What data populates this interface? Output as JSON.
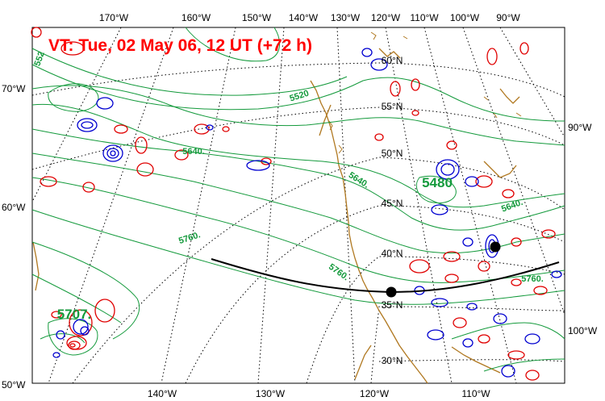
{
  "title": "VT:  Tue, 02 May 06, 12 UT (+72 h)",
  "colors": {
    "height": "#149a3c",
    "positive": "#e00000",
    "negative": "#0000d0",
    "coast": "#b07820",
    "track": "#000000"
  },
  "top_lon_labels": [
    "170°W",
    "160°W",
    "150°W",
    "140°W",
    "130°W",
    "120°W",
    "110°W",
    "100°W",
    "90°W"
  ],
  "bottom_lon_labels": [
    "140°W",
    "130°W",
    "120°W",
    "110°W"
  ],
  "left_lat_labels": [
    "70°W",
    "60°W",
    "50°W"
  ],
  "right_lat_labels": [
    "90°W",
    "100°W"
  ],
  "interior_lat_labels": [
    "60°N",
    "55°N",
    "50°N",
    "45°N",
    "40°N",
    "35°N",
    "30°N"
  ],
  "contour_labels": [
    "5520",
    "5640.",
    "5640.",
    "5640.",
    "5760.",
    "5760.",
    "5760.",
    "5480",
    "5707.",
    "552"
  ]
}
